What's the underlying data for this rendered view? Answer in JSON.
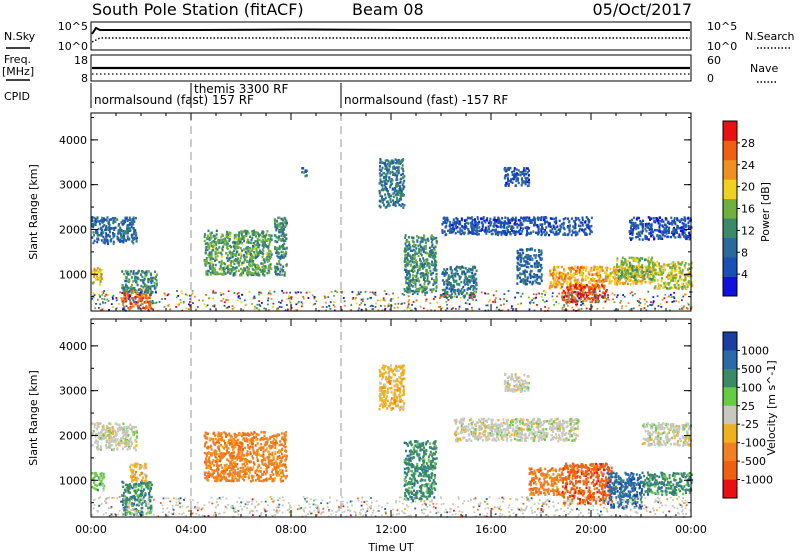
{
  "header": {
    "station": "South Pole Station (fitACF)",
    "beam": "Beam 08",
    "date": "05/Oct/2017"
  },
  "top_panels": {
    "nsky_label": "N.Sky",
    "nsky_ticks": [
      "10^5",
      "10^0"
    ],
    "nsearch_label": "N.Search",
    "nsearch_ticks": [
      "10^5",
      "10^0"
    ],
    "freq_label": "Freq.",
    "freq_unit": "[MHz]",
    "freq_ticks": [
      "18",
      "8"
    ],
    "nave_label": "Nave",
    "nave_ticks": [
      "60",
      "0"
    ],
    "cpid_label": "CPID",
    "cpid_segments": [
      {
        "label": "normalsound (fast) 157 RF",
        "start_h": 0.0,
        "end_h": 4.0
      },
      {
        "label": "themis 3300 RF",
        "start_h": 4.0,
        "end_h": 10.0
      },
      {
        "label": "normalsound (fast) -157 RF",
        "start_h": 10.0,
        "end_h": 24.0
      }
    ]
  },
  "colors": {
    "power_scale": [
      "#1010e0",
      "#1a4fb8",
      "#2a6a9a",
      "#3a8a6a",
      "#70b040",
      "#f0d020",
      "#f09020",
      "#f06010",
      "#e81010"
    ],
    "velocity_scale": [
      "#1a3fa0",
      "#2a6aa8",
      "#3a8a6a",
      "#66cc44",
      "#c8c8c0",
      "#f0b020",
      "#f08020",
      "#f06010",
      "#e81010"
    ]
  },
  "chart_data": [
    {
      "type": "heatmap",
      "name": "power",
      "ylabel": "Slant Range [km]",
      "xlabel": "",
      "ylim": [
        180,
        4600
      ],
      "xlim": [
        0,
        24
      ],
      "yticks": [
        "1000",
        "2000",
        "3000",
        "4000"
      ],
      "xticks": [
        "00:00",
        "04:00",
        "08:00",
        "12:00",
        "16:00",
        "20:00",
        "00:00"
      ],
      "colorbar_label": "Power [dB]",
      "colorbar_ticks": [
        "4",
        "8",
        "12",
        "16",
        "20",
        "24",
        "28"
      ],
      "colorbar_range": [
        0,
        32
      ],
      "regions": [
        {
          "t0": 0.0,
          "t1": 0.4,
          "r0": 800,
          "r1": 1200,
          "v": 20
        },
        {
          "t0": 0.0,
          "t1": 1.8,
          "r0": 1700,
          "r1": 2300,
          "v": 8
        },
        {
          "t0": 1.2,
          "t1": 2.4,
          "r0": 250,
          "r1": 700,
          "v": 26
        },
        {
          "t0": 1.2,
          "t1": 2.6,
          "r0": 600,
          "r1": 1100,
          "v": 12
        },
        {
          "t0": 4.5,
          "t1": 7.2,
          "r0": 1000,
          "r1": 2000,
          "v": 14
        },
        {
          "t0": 7.3,
          "t1": 7.8,
          "r0": 1000,
          "r1": 2300,
          "v": 12
        },
        {
          "t0": 8.4,
          "t1": 8.6,
          "r0": 3200,
          "r1": 3400,
          "v": 8
        },
        {
          "t0": 11.5,
          "t1": 12.5,
          "r0": 2500,
          "r1": 3600,
          "v": 10
        },
        {
          "t0": 12.5,
          "t1": 13.8,
          "r0": 600,
          "r1": 1900,
          "v": 12
        },
        {
          "t0": 14.0,
          "t1": 15.4,
          "r0": 500,
          "r1": 1200,
          "v": 10
        },
        {
          "t0": 14.0,
          "t1": 20.0,
          "r0": 1900,
          "r1": 2300,
          "v": 6
        },
        {
          "t0": 16.5,
          "t1": 17.5,
          "r0": 3000,
          "r1": 3400,
          "v": 6
        },
        {
          "t0": 17.0,
          "t1": 18.0,
          "r0": 800,
          "r1": 1600,
          "v": 8
        },
        {
          "t0": 18.3,
          "t1": 20.5,
          "r0": 700,
          "r1": 1200,
          "v": 22
        },
        {
          "t0": 18.8,
          "t1": 20.6,
          "r0": 400,
          "r1": 800,
          "v": 28
        },
        {
          "t0": 20.5,
          "t1": 22.5,
          "r0": 800,
          "r1": 1200,
          "v": 20
        },
        {
          "t0": 21.0,
          "t1": 22.5,
          "r0": 900,
          "r1": 1400,
          "v": 16
        },
        {
          "t0": 21.5,
          "t1": 24.0,
          "r0": 1800,
          "r1": 2300,
          "v": 6
        },
        {
          "t0": 22.5,
          "t1": 24.0,
          "r0": 700,
          "r1": 1300,
          "v": 18
        }
      ]
    },
    {
      "type": "heatmap",
      "name": "velocity",
      "ylabel": "Slant Range [km]",
      "xlabel": "Time UT",
      "ylim": [
        180,
        4600
      ],
      "xlim": [
        0,
        24
      ],
      "yticks": [
        "1000",
        "2000",
        "3000",
        "4000"
      ],
      "xticks": [
        "00:00",
        "04:00",
        "08:00",
        "12:00",
        "16:00",
        "20:00",
        "00:00"
      ],
      "colorbar_label": "Velocity [m s^-1]",
      "colorbar_ticks": [
        "1000",
        "500",
        "100",
        "25",
        "-25",
        "-100",
        "-500",
        "-1000"
      ],
      "regions": [
        {
          "t0": 0.0,
          "t1": 0.5,
          "r0": 800,
          "r1": 1200,
          "v": 3
        },
        {
          "t0": 0.0,
          "t1": 1.8,
          "r0": 1700,
          "r1": 2300,
          "v": 4
        },
        {
          "t0": 1.2,
          "t1": 2.4,
          "r0": 250,
          "r1": 1000,
          "v": 2
        },
        {
          "t0": 1.5,
          "t1": 2.2,
          "r0": 1000,
          "r1": 1400,
          "v": 5
        },
        {
          "t0": 4.5,
          "t1": 7.8,
          "r0": 1000,
          "r1": 2100,
          "v": 6
        },
        {
          "t0": 11.5,
          "t1": 12.5,
          "r0": 2600,
          "r1": 3600,
          "v": 5
        },
        {
          "t0": 12.5,
          "t1": 13.8,
          "r0": 600,
          "r1": 1900,
          "v": 2
        },
        {
          "t0": 14.5,
          "t1": 19.5,
          "r0": 1900,
          "r1": 2400,
          "v": 4
        },
        {
          "t0": 16.5,
          "t1": 17.5,
          "r0": 3000,
          "r1": 3400,
          "v": 4
        },
        {
          "t0": 17.5,
          "t1": 18.8,
          "r0": 700,
          "r1": 1300,
          "v": 6
        },
        {
          "t0": 18.8,
          "t1": 20.8,
          "r0": 500,
          "r1": 1400,
          "v": 7
        },
        {
          "t0": 20.6,
          "t1": 22.0,
          "r0": 400,
          "r1": 1200,
          "v": 1
        },
        {
          "t0": 22.0,
          "t1": 24.0,
          "r0": 700,
          "r1": 1200,
          "v": 2
        },
        {
          "t0": 22.0,
          "t1": 24.0,
          "r0": 1800,
          "r1": 2300,
          "v": 4
        }
      ]
    }
  ]
}
